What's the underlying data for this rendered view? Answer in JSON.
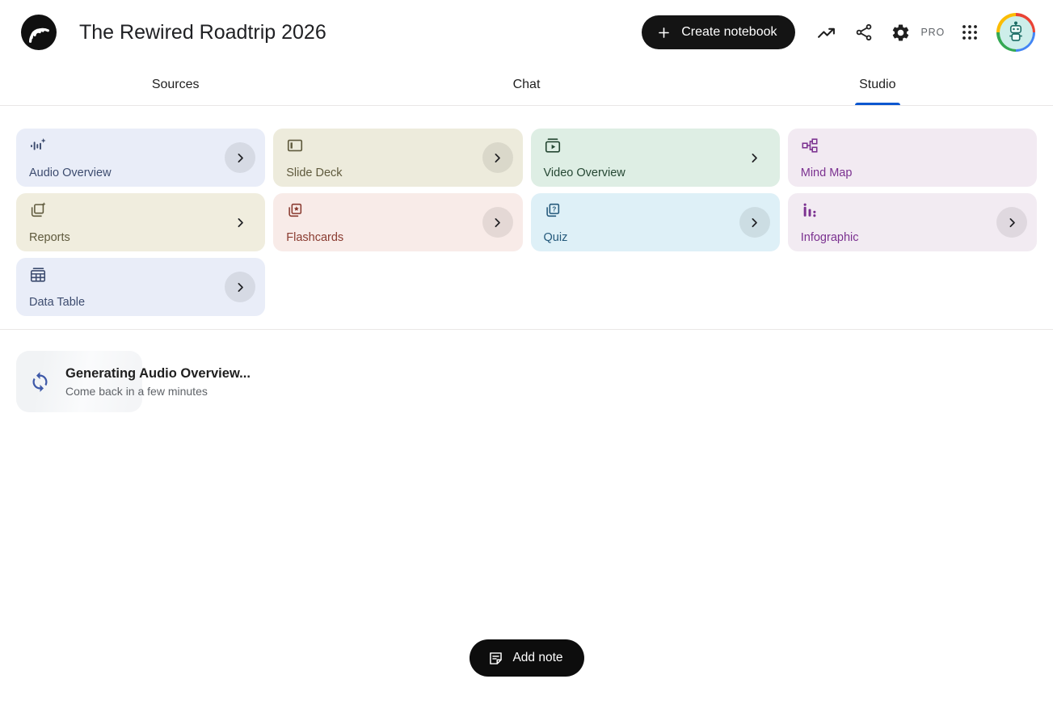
{
  "header": {
    "title": "The Rewired Roadtrip 2026",
    "create_notebook_label": "Create notebook",
    "pro_label": "PRO"
  },
  "tabs": [
    {
      "id": "sources",
      "label": "Sources",
      "active": false
    },
    {
      "id": "chat",
      "label": "Chat",
      "active": false
    },
    {
      "id": "studio",
      "label": "Studio",
      "active": true
    }
  ],
  "studio": {
    "tools": [
      {
        "id": "audio-overview",
        "label": "Audio Overview",
        "icon": "audio-overview-icon",
        "bg": "#e9edf8",
        "fg": "#3d4c6f",
        "chevron": "circle"
      },
      {
        "id": "slide-deck",
        "label": "Slide Deck",
        "icon": "slide-deck-icon",
        "bg": "#edebdc",
        "fg": "#5f5a3d",
        "chevron": "circle"
      },
      {
        "id": "video-overview",
        "label": "Video Overview",
        "icon": "video-overview-icon",
        "bg": "#deeee4",
        "fg": "#254733",
        "chevron": "plain"
      },
      {
        "id": "mind-map",
        "label": "Mind Map",
        "icon": "mind-map-icon",
        "bg": "#f2eaf2",
        "fg": "#7b3190",
        "chevron": "none"
      },
      {
        "id": "reports",
        "label": "Reports",
        "icon": "reports-icon",
        "bg": "#f0edde",
        "fg": "#5f5a3d",
        "chevron": "plain"
      },
      {
        "id": "flashcards",
        "label": "Flashcards",
        "icon": "flashcards-icon",
        "bg": "#f8ebe8",
        "fg": "#8a3b30",
        "chevron": "circle"
      },
      {
        "id": "quiz",
        "label": "Quiz",
        "icon": "quiz-icon",
        "bg": "#def0f7",
        "fg": "#24597b",
        "chevron": "circle"
      },
      {
        "id": "infographic",
        "label": "Infographic",
        "icon": "infographic-icon",
        "bg": "#f2ebf2",
        "fg": "#7b3190",
        "chevron": "circle"
      },
      {
        "id": "data-table",
        "label": "Data Table",
        "icon": "data-table-icon",
        "bg": "#e9edf8",
        "fg": "#3d4c6f",
        "chevron": "circle"
      }
    ],
    "generating": {
      "title": "Generating Audio Overview...",
      "subtitle": "Come back in a few minutes"
    }
  },
  "footer": {
    "add_note_label": "Add note"
  },
  "colors": {
    "tab_active_underline": "#0b57d0",
    "sync_icon": "#3e59a8",
    "create_button_bg": "#141414",
    "add_note_bg": "#0d0d0d",
    "pro_text": "#5f6368"
  }
}
